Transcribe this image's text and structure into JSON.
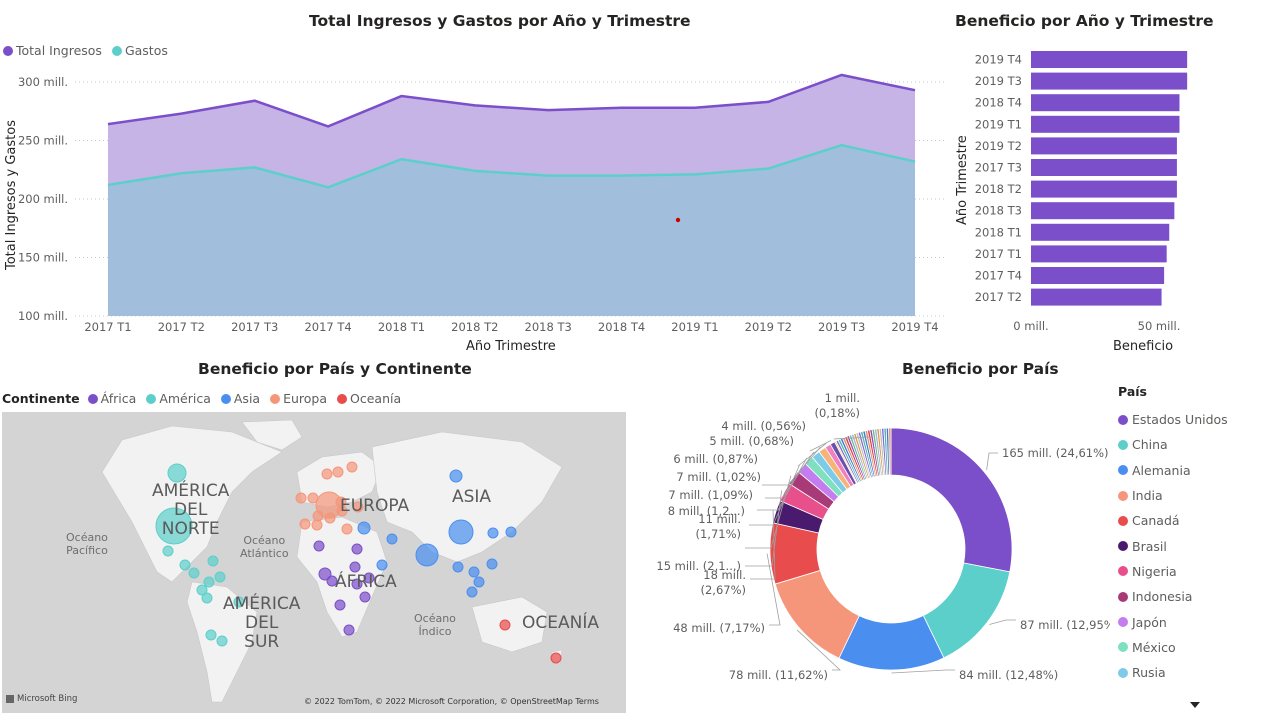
{
  "area_chart": {
    "title": "Total Ingresos y Gastos por Año y Trimestre",
    "legend": [
      {
        "name": "Total Ingresos",
        "color": "#7b4fc9"
      },
      {
        "name": "Gastos",
        "color": "#5ccfcb"
      }
    ],
    "ylabel": "Total Ingresos y Gastos",
    "xlabel": "Año Trimestre",
    "ytick_labels": [
      "100 mill.",
      "150 mill.",
      "200 mill.",
      "250 mill.",
      "300 mill."
    ]
  },
  "bar_chart": {
    "title": "Beneficio por Año y Trimestre",
    "ylabel": "Año Trimestre",
    "xlabel": "Beneficio",
    "xtick_labels": [
      "0 mill.",
      "50 mill."
    ],
    "bar_color": "#7b4fc9"
  },
  "map_chart": {
    "title": "Beneficio por País y Continente",
    "legend_title": "Continente",
    "legend": [
      {
        "name": "África",
        "color": "#7b4fc9"
      },
      {
        "name": "América",
        "color": "#5ccfcb"
      },
      {
        "name": "Asia",
        "color": "#4a8ff0"
      },
      {
        "name": "Europa",
        "color": "#f5967a"
      },
      {
        "name": "Oceanía",
        "color": "#e84c4c"
      }
    ],
    "continent_labels": [
      "AMÉRICA",
      "DEL",
      "NORTE",
      "EUROPA",
      "ASIA",
      "ÁFRICA",
      "AMÉRICA",
      "DEL",
      "SUR",
      "OCEANÍA"
    ],
    "ocean_labels": [
      "Océano",
      "Pacífico",
      "Océano",
      "Atlántico",
      "Océano",
      "Índico"
    ],
    "attribution": "© 2022 TomTom, © 2022 Microsoft Corporation, © OpenStreetMap  Terms",
    "logo": "Microsoft Bing"
  },
  "donut_chart": {
    "title": "Beneficio por País",
    "legend_title": "País"
  },
  "chart_data": [
    {
      "type": "area",
      "title": "Total Ingresos y Gastos por Año y Trimestre",
      "xlabel": "Año Trimestre",
      "ylabel": "Total Ingresos y Gastos",
      "x": [
        "2017 T1",
        "2017 T2",
        "2017 T3",
        "2017 T4",
        "2018 T1",
        "2018 T2",
        "2018 T3",
        "2018 T4",
        "2019 T1",
        "2019 T2",
        "2019 T3",
        "2019 T4"
      ],
      "ylim": [
        100,
        310
      ],
      "unit": "mill.",
      "series": [
        {
          "name": "Total Ingresos",
          "color": "#7b4fc9",
          "fill": "#c7b4e6",
          "values": [
            264,
            273,
            284,
            262,
            288,
            280,
            276,
            278,
            278,
            283,
            306,
            293
          ]
        },
        {
          "name": "Gastos",
          "color": "#5ccfcb",
          "fill": "#a1bfdd",
          "values": [
            212,
            222,
            227,
            210,
            234,
            224,
            220,
            220,
            221,
            226,
            246,
            232
          ]
        }
      ],
      "legend_position": "top-left",
      "grid": true
    },
    {
      "type": "bar",
      "orientation": "horizontal",
      "title": "Beneficio por Año y Trimestre",
      "xlabel": "Beneficio",
      "ylabel": "Año Trimestre",
      "categories": [
        "2019 T4",
        "2019 T3",
        "2018 T4",
        "2019 T1",
        "2019 T2",
        "2017 T3",
        "2018 T2",
        "2018 T3",
        "2018 T1",
        "2017 T1",
        "2017 T4",
        "2017 T2"
      ],
      "values": [
        61,
        61,
        58,
        58,
        57,
        57,
        57,
        56,
        54,
        53,
        52,
        51
      ],
      "xlim": [
        0,
        65
      ],
      "unit": "mill."
    },
    {
      "type": "scatter",
      "subtype": "map",
      "title": "Beneficio por País y Continente",
      "series": [
        {
          "name": "África"
        },
        {
          "name": "América"
        },
        {
          "name": "Asia"
        },
        {
          "name": "Europa"
        },
        {
          "name": "Oceanía"
        }
      ]
    },
    {
      "type": "pie",
      "subtype": "donut",
      "title": "Beneficio por País",
      "legend_title": "País",
      "legend_entries": [
        "Estados Unidos",
        "China",
        "Alemania",
        "India",
        "Canadá",
        "Brasil",
        "Nigeria",
        "Indonesia",
        "Japón",
        "México",
        "Rusia"
      ],
      "slices": [
        {
          "label": "Estados Unidos",
          "value": 165,
          "pct": "24,61%",
          "text": "165 mill. (24,61%)",
          "color": "#7b4fc9"
        },
        {
          "label": "China",
          "value": 87,
          "pct": "12,95%",
          "text": "87 mill. (12,95%)",
          "color": "#5ccfcb"
        },
        {
          "label": "Alemania",
          "value": 84,
          "pct": "12,48%",
          "text": "84 mill. (12,48%)",
          "color": "#4a8ff0"
        },
        {
          "label": "India",
          "value": 78,
          "pct": "11,62%",
          "text": "78 mill. (11,62%)",
          "color": "#f5967a"
        },
        {
          "label": "Canadá",
          "value": 48,
          "pct": "7,17%",
          "text": "48 mill. (7,17%)",
          "color": "#e84c4c"
        },
        {
          "label": "Brasil",
          "value": 18,
          "pct": "2,67%",
          "text1": "18 mill.",
          "text2": "(2,67%)",
          "color": "#4a1a6e"
        },
        {
          "label": "Nigeria",
          "value": 15,
          "pct": "2,1…",
          "text": "15 mill. (2,1...)",
          "color": "#e8508c"
        },
        {
          "label": "Indonesia",
          "value": 11.5,
          "pct": "1,71%",
          "text1": "11 mill.",
          "text2": "(1,71%)",
          "color": "#a83b77"
        },
        {
          "label": "Japón",
          "value": 8.5,
          "pct": "1,2…",
          "text": "8 mill. (1,2...)",
          "color": "#c47df0"
        },
        {
          "label": "México",
          "value": 7.3,
          "pct": "1,09%",
          "text": "7 mill. (1,09%)",
          "color": "#7fe0c0"
        },
        {
          "label": "Rusia",
          "value": 6.8,
          "pct": "1,02%",
          "text": "7 mill. (1,02%)",
          "color": "#7ecbe8"
        },
        {
          "label": "",
          "value": 5.8,
          "pct": "0,87%",
          "text": "6 mill. (0,87%)",
          "color": "#f7b47a"
        },
        {
          "label": "",
          "value": 4.6,
          "pct": "0,68%",
          "text": "5 mill. (0,68%)",
          "color": "#f080c0"
        },
        {
          "label": "",
          "value": 3.8,
          "pct": "0,56%",
          "text": "4 mill. (0,56%)",
          "color": "#6a4fb0"
        },
        {
          "label": "",
          "value": 1.2,
          "pct": "0,18%",
          "text1": "1 mill.",
          "text2": "(0,18%)",
          "color": "#e8d44a"
        }
      ],
      "other_total_pct": 6.6
    }
  ]
}
